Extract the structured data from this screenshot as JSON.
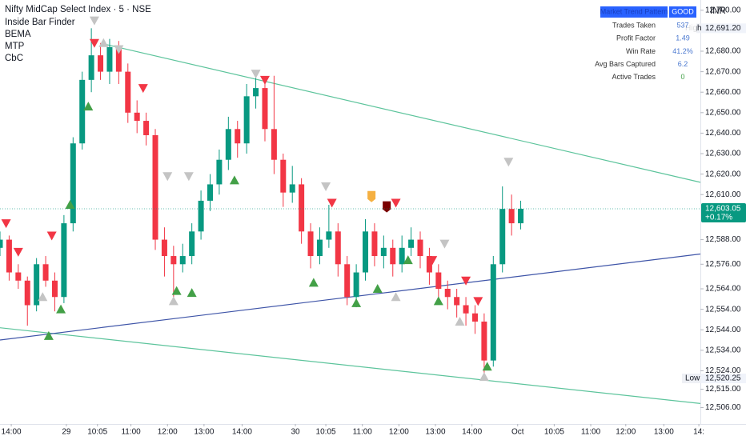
{
  "chart_data": {
    "type": "candlestick",
    "title": "Nifty MidCap Select Index · 5 · NSE",
    "indicators": [
      "Inside Bar Finder",
      "BEMA",
      "MTP",
      "CbC"
    ],
    "currency": "INR",
    "up_color": "#089981",
    "down_color": "#f23645",
    "xlim": [
      0,
      230
    ],
    "ylim": [
      12498,
      12705
    ],
    "xticks": [
      {
        "value": 3.7,
        "label": "14:00"
      },
      {
        "value": 21.8,
        "label": "29"
      },
      {
        "value": 32,
        "label": "10:05"
      },
      {
        "value": 43,
        "label": "11:00"
      },
      {
        "value": 55,
        "label": "12:00"
      },
      {
        "value": 67,
        "label": "13:00"
      },
      {
        "value": 79.5,
        "label": "14:00"
      },
      {
        "value": 97,
        "label": "30"
      },
      {
        "value": 107,
        "label": "10:05"
      },
      {
        "value": 119,
        "label": "11:00"
      },
      {
        "value": 131,
        "label": "12:00"
      },
      {
        "value": 143,
        "label": "13:00"
      },
      {
        "value": 155,
        "label": "14:00"
      },
      {
        "value": 170,
        "label": "Oct"
      },
      {
        "value": 182,
        "label": "10:05"
      },
      {
        "value": 194,
        "label": "11:00"
      },
      {
        "value": 205.5,
        "label": "12:00"
      },
      {
        "value": 218,
        "label": "13:00"
      },
      {
        "value": 229.5,
        "label": "14:"
      }
    ],
    "yticks": [
      {
        "value": 12700,
        "label": "12,700.00"
      },
      {
        "value": 12680,
        "label": "12,680.00"
      },
      {
        "value": 12670,
        "label": "12,670.00"
      },
      {
        "value": 12660,
        "label": "12,660.00"
      },
      {
        "value": 12650,
        "label": "12,650.00"
      },
      {
        "value": 12640,
        "label": "12,640.00"
      },
      {
        "value": 12630,
        "label": "12,630.00"
      },
      {
        "value": 12620,
        "label": "12,620.00"
      },
      {
        "value": 12610,
        "label": "12,610.00"
      },
      {
        "value": 12588,
        "label": "12,588.00"
      },
      {
        "value": 12576,
        "label": "12,576.00"
      },
      {
        "value": 12564,
        "label": "12,564.00"
      },
      {
        "value": 12554,
        "label": "12,554.00"
      },
      {
        "value": 12544,
        "label": "12,544.00"
      },
      {
        "value": 12534,
        "label": "12,534.00"
      },
      {
        "value": 12524,
        "label": "12,524.00"
      },
      {
        "value": 12515,
        "label": "12,515.00"
      },
      {
        "value": 12506,
        "label": "12,506.00"
      }
    ],
    "x": [
      0,
      3,
      6,
      9,
      12,
      15,
      18,
      21,
      24,
      27,
      30,
      33,
      36,
      39,
      42,
      45,
      48,
      51,
      54,
      57,
      60,
      63,
      66,
      69,
      72,
      75,
      78,
      81,
      84,
      87,
      90,
      93,
      96,
      99,
      102,
      105,
      108,
      111,
      114,
      117,
      120,
      123,
      126,
      129,
      132,
      135,
      138,
      141,
      144,
      147,
      150,
      153,
      156,
      159,
      162,
      165,
      168,
      171
    ],
    "open": [
      12584,
      12588,
      12572,
      12568,
      12556,
      12576,
      12568,
      12560,
      12596,
      12635,
      12666,
      12678,
      12670,
      12682,
      12670,
      12650,
      12646,
      12639,
      12588,
      12580,
      12576,
      12580,
      12592,
      12607,
      12615,
      12627,
      12642,
      12635,
      12658,
      12662,
      12642,
      12627,
      12611,
      12615,
      12592,
      12580,
      12588,
      12592,
      12576,
      12560,
      12572,
      12592,
      12580,
      12584,
      12576,
      12584,
      12588,
      12580,
      12572,
      12564,
      12560,
      12556,
      12552,
      12548,
      12529,
      12576,
      12603,
      12596
    ],
    "high": [
      12592,
      12590,
      12576,
      12570,
      12579,
      12580,
      12572,
      12600,
      12638,
      12670,
      12691.2,
      12684,
      12686,
      12685,
      12674,
      12656,
      12650,
      12642,
      12594,
      12585,
      12586,
      12596,
      12612,
      12620,
      12632,
      12648,
      12646,
      12664,
      12670,
      12666,
      12668,
      12630,
      12624,
      12618,
      12596,
      12594,
      12605,
      12596,
      12580,
      12576,
      12598,
      12596,
      12590,
      12588,
      12590,
      12594,
      12592,
      12584,
      12576,
      12568,
      12564,
      12560,
      12556,
      12552,
      12580,
      12614,
      12610,
      12607
    ],
    "low": [
      12580,
      12568,
      12564,
      12546,
      12553,
      12565,
      12553,
      12557,
      12592,
      12632,
      12660,
      12666,
      12664,
      12664,
      12645,
      12640,
      12634,
      12583,
      12570,
      12560,
      12572,
      12576,
      12588,
      12602,
      12610,
      12622,
      12628,
      12630,
      12652,
      12636,
      12620,
      12604,
      12606,
      12586,
      12574,
      12576,
      12584,
      12570,
      12556,
      12555,
      12568,
      12575,
      12574,
      12570,
      12572,
      12580,
      12574,
      12566,
      12560,
      12554,
      12550,
      12546,
      12542,
      12520.25,
      12526,
      12572,
      12590,
      12593
    ],
    "close": [
      12588,
      12572,
      12568,
      12556,
      12576,
      12568,
      12560,
      12596,
      12635,
      12666,
      12678,
      12670,
      12682,
      12670,
      12650,
      12646,
      12639,
      12588,
      12580,
      12576,
      12580,
      12592,
      12607,
      12615,
      12627,
      12642,
      12635,
      12658,
      12662,
      12642,
      12627,
      12611,
      12615,
      12592,
      12580,
      12588,
      12592,
      12576,
      12560,
      12572,
      12592,
      12580,
      12584,
      12576,
      12584,
      12588,
      12580,
      12572,
      12564,
      12560,
      12556,
      12552,
      12548,
      12529,
      12576,
      12603,
      12596,
      12603.05
    ],
    "trendlines": [
      {
        "color": "#5dc49c",
        "x": [
          34.2,
          230
        ],
        "y": [
          12683.5,
          12616
        ]
      },
      {
        "color": "#5dc49c",
        "x": [
          0,
          230
        ],
        "y": [
          12545,
          12508
        ]
      },
      {
        "color": "#3f55a8",
        "x": [
          0,
          230
        ],
        "y": [
          12539,
          12581
        ]
      }
    ],
    "signals": [
      {
        "color": "#f23645",
        "shape": "down",
        "points": [
          [
            2,
            12596
          ],
          [
            6,
            12582
          ],
          [
            17,
            12590
          ],
          [
            31,
            12684
          ],
          [
            47,
            12662
          ],
          [
            87,
            12666
          ],
          [
            109,
            12606
          ],
          [
            130,
            12606
          ],
          [
            142,
            12578
          ],
          [
            153,
            12568
          ],
          [
            157,
            12558
          ]
        ]
      },
      {
        "color": "#43a047",
        "shape": "up",
        "points": [
          [
            16,
            12541
          ],
          [
            20,
            12554
          ],
          [
            23,
            12605
          ],
          [
            29,
            12653
          ],
          [
            58,
            12563
          ],
          [
            63,
            12562
          ],
          [
            77,
            12617
          ],
          [
            103,
            12567
          ],
          [
            117,
            12557
          ],
          [
            124,
            12564
          ],
          [
            134,
            12578
          ],
          [
            144,
            12558
          ],
          [
            160,
            12526
          ]
        ]
      },
      {
        "color": "#c4c4c4",
        "shape": "down",
        "points": [
          [
            31,
            12695
          ],
          [
            39,
            12681
          ],
          [
            55,
            12619
          ],
          [
            62,
            12619
          ],
          [
            84,
            12669
          ],
          [
            107,
            12614
          ],
          [
            146,
            12586
          ],
          [
            167,
            12626
          ]
        ]
      },
      {
        "color": "#c4c4c4",
        "shape": "up",
        "points": [
          [
            14,
            12560
          ],
          [
            34,
            12684
          ],
          [
            57,
            12558
          ],
          [
            130,
            12560
          ],
          [
            151,
            12548
          ],
          [
            159,
            12521
          ]
        ]
      },
      {
        "color": "#f5b041",
        "shape": "square",
        "points": [
          [
            122,
            12609
          ]
        ]
      },
      {
        "color": "#7a0000",
        "shape": "square",
        "points": [
          [
            127,
            12604
          ]
        ]
      }
    ],
    "high_marker": {
      "label": "High",
      "value": 12691.2,
      "value_label": "12,691.20"
    },
    "low_marker": {
      "label": "Low",
      "value": 12520.25,
      "value_label": "12,520.25"
    },
    "last_price": {
      "value": 12603.05,
      "value_label": "12,603.05",
      "change": "+0.17%"
    },
    "table": {
      "header": [
        "Market Trend Pattern",
        "GOOD"
      ],
      "rows": [
        [
          "Trades Taken",
          "537"
        ],
        [
          "Profit Factor",
          "1.49"
        ],
        [
          "Win Rate",
          "41.2%"
        ],
        [
          "Avg Bars Captured",
          "6.2"
        ],
        [
          "Active Trades",
          "0"
        ]
      ]
    }
  }
}
